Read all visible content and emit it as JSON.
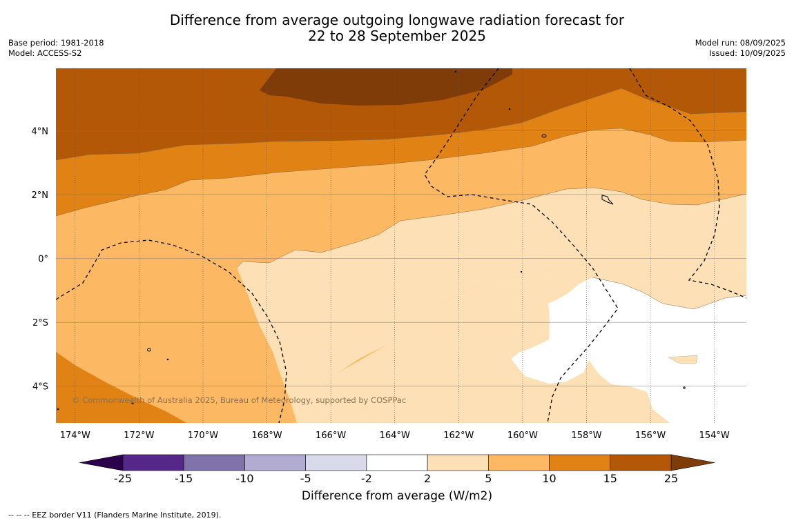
{
  "title": {
    "line1": "Difference from average outgoing longwave radiation forecast for",
    "line2": "22 to 28 September 2025"
  },
  "meta_left": {
    "base_period": "Base period: 1981-2018",
    "model": "Model: ACCESS-S2"
  },
  "meta_right": {
    "model_run": "Model run: 08/09/2025",
    "issued": "Issued: 10/09/2025"
  },
  "map": {
    "lon_range": [
      -174.6,
      -153.0
    ],
    "lat_range": [
      -5.15,
      5.95
    ],
    "lon_ticks": [
      {
        "value": -174,
        "label": "174°W"
      },
      {
        "value": -172,
        "label": "172°W"
      },
      {
        "value": -170,
        "label": "170°W"
      },
      {
        "value": -168,
        "label": "168°W"
      },
      {
        "value": -166,
        "label": "166°W"
      },
      {
        "value": -164,
        "label": "164°W"
      },
      {
        "value": -162,
        "label": "162°W"
      },
      {
        "value": -160,
        "label": "160°W"
      },
      {
        "value": -158,
        "label": "158°W"
      },
      {
        "value": -156,
        "label": "156°W"
      },
      {
        "value": -154,
        "label": "154°W"
      }
    ],
    "lat_ticks": [
      {
        "value": 4,
        "label": "4°N"
      },
      {
        "value": 2,
        "label": "2°N"
      },
      {
        "value": 0,
        "label": "0°"
      },
      {
        "value": -2,
        "label": "2°S"
      },
      {
        "value": -4,
        "label": "4°S"
      }
    ],
    "copyright": "© Commonwealth of Australia 2025, Bureau of Meteorology, supported by COSPPac"
  },
  "colorbar": {
    "ticks": [
      "-25",
      "-15",
      "-10",
      "-5",
      "-2",
      "2",
      "5",
      "10",
      "15",
      "25"
    ],
    "colors": [
      "#542788",
      "#8073ac",
      "#b2abd2",
      "#d8daeb",
      "#ffffff",
      "#fee0b6",
      "#fdb863",
      "#e08214",
      "#b35806"
    ],
    "extend_low": "#2d004b",
    "extend_high": "#7f3b08",
    "label": "Difference from average (W/m2)"
  },
  "footer": "--  --  -- EEZ border V11 (Flanders Marine Institute, 2019)."
}
